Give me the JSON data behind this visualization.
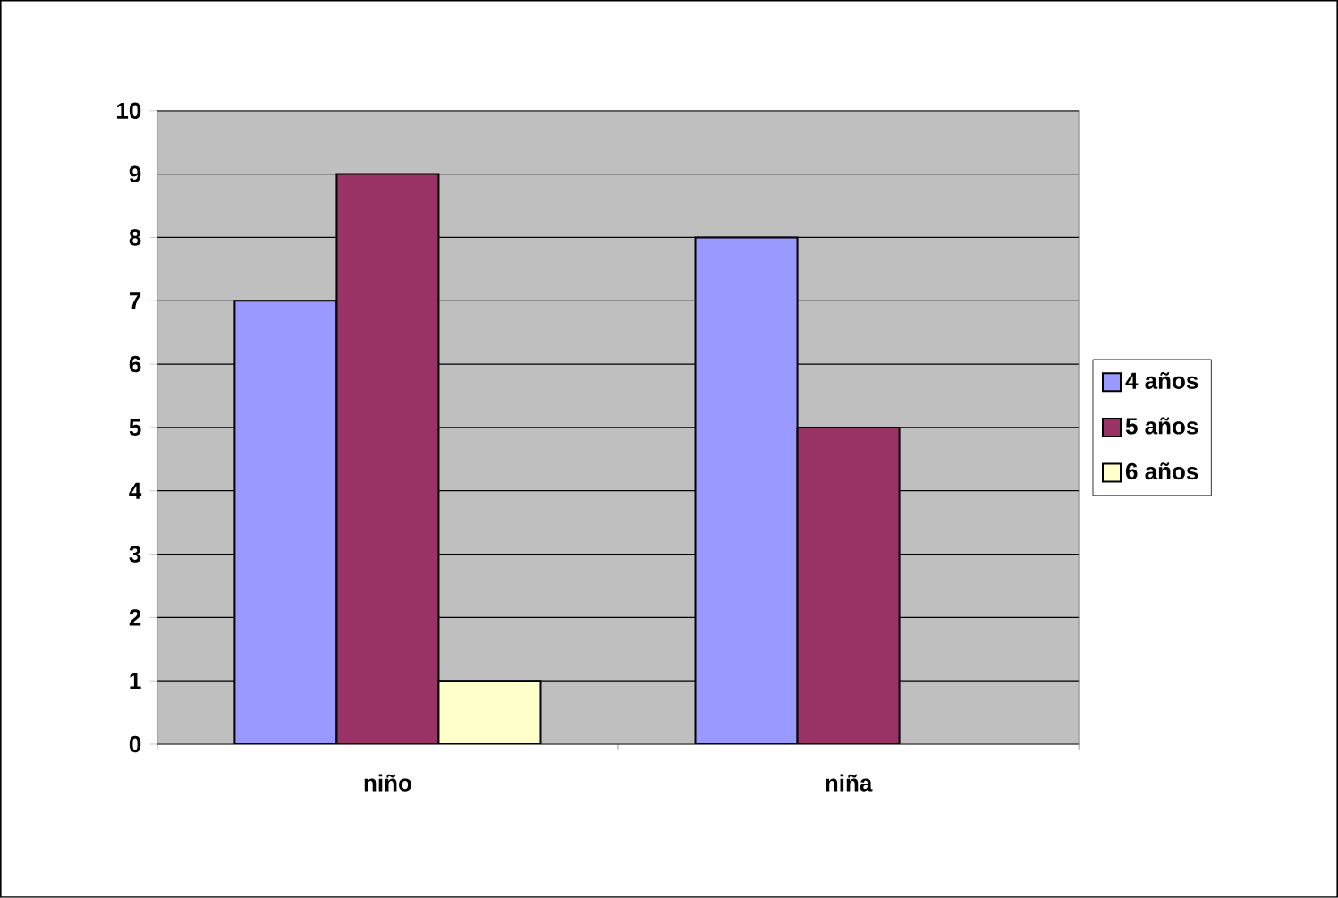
{
  "chart_data": {
    "type": "bar",
    "categories": [
      "niño",
      "niña"
    ],
    "series": [
      {
        "name": "4 años",
        "color": "#9999ff",
        "values": [
          7,
          8
        ]
      },
      {
        "name": "5 años",
        "color": "#993366",
        "values": [
          9,
          5
        ]
      },
      {
        "name": "6 años",
        "color": "#ffffcc",
        "values": [
          1,
          null
        ]
      }
    ],
    "ylim": [
      0,
      10
    ],
    "yticks": [
      0,
      1,
      2,
      3,
      4,
      5,
      6,
      7,
      8,
      9,
      10
    ],
    "grid": "y",
    "legend": "right"
  }
}
